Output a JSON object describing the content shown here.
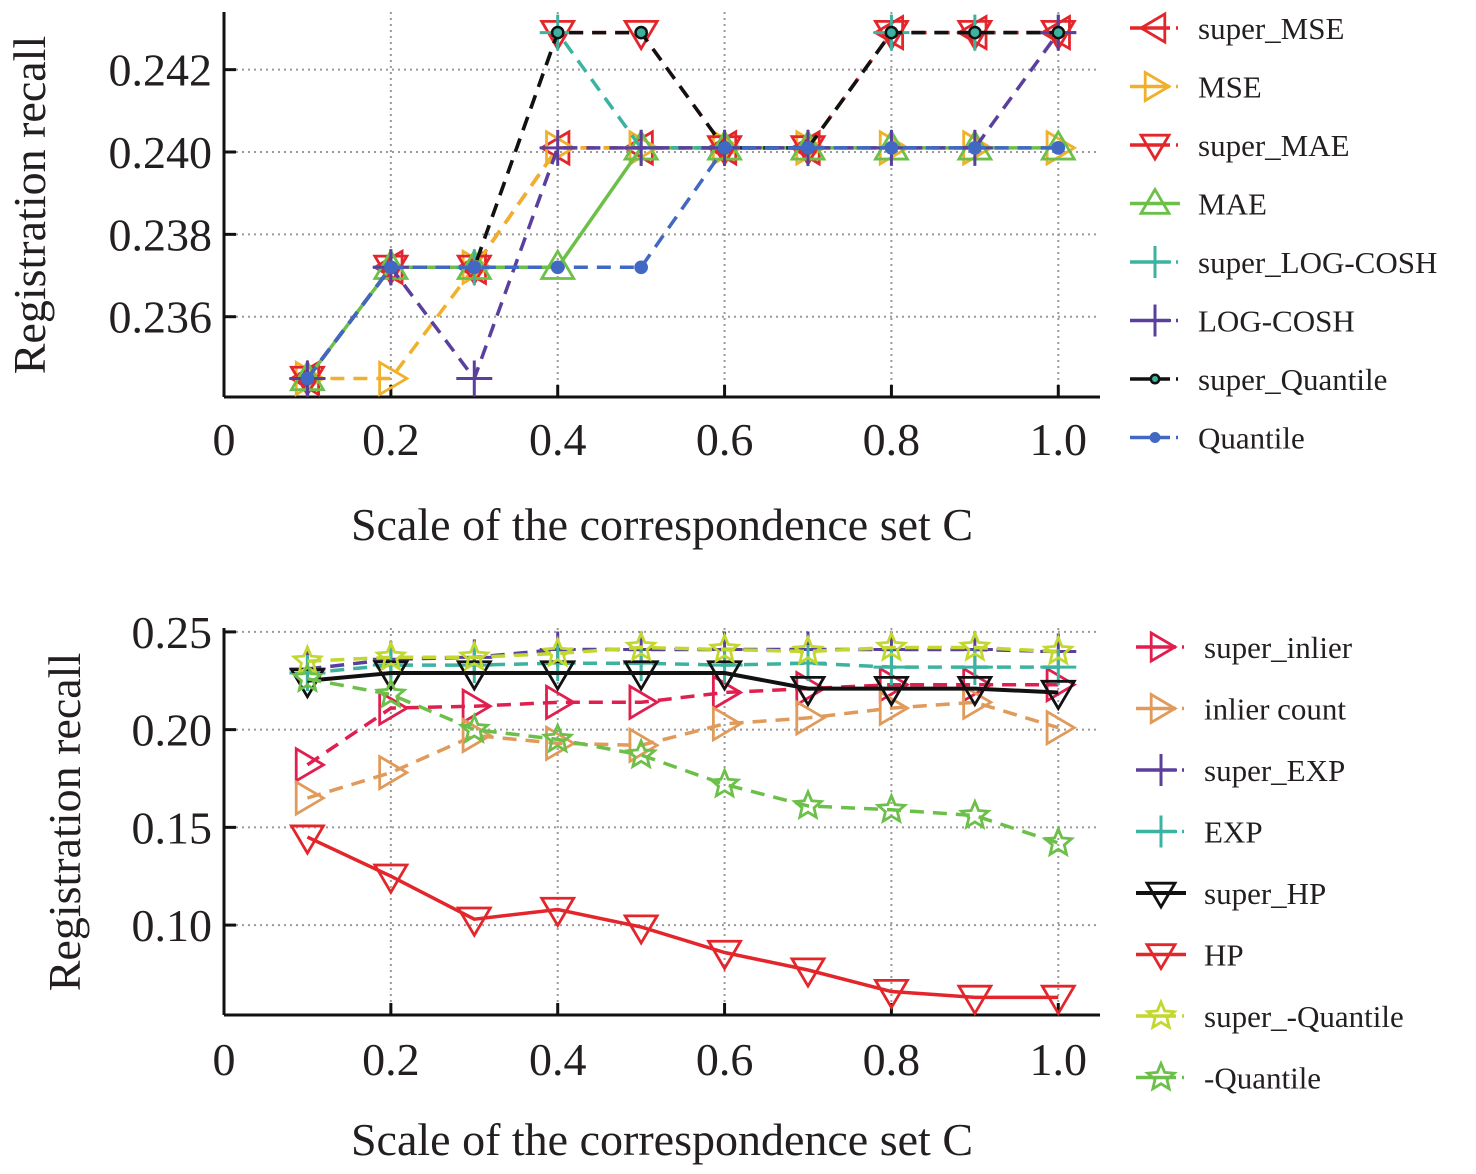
{
  "chart_data": [
    {
      "type": "line",
      "panel": "top",
      "title": "",
      "xlabel": "Scale of the correspondence set C",
      "ylabel": "Registration recall",
      "x": [
        0.1,
        0.2,
        0.3,
        0.4,
        0.5,
        0.6,
        0.7,
        0.8,
        0.9,
        1.0
      ],
      "xlim": [
        0,
        1.05
      ],
      "ylim": [
        0.23405,
        0.2434
      ],
      "xticks": [
        0,
        0.2,
        0.4,
        0.6,
        0.8,
        1.0
      ],
      "xtick_labels": [
        "0",
        "0.2",
        "0.4",
        "0.6",
        "0.8",
        "1.0"
      ],
      "yticks": [
        0.236,
        0.238,
        0.24,
        0.242
      ],
      "ytick_labels": [
        "0.236",
        "0.238",
        "0.240",
        "0.242"
      ],
      "grid": true,
      "legend_position": "right",
      "series": [
        {
          "name": "super_MSE",
          "color": "#e3262b",
          "marker": "triangle-left",
          "dash": "dashed",
          "values": [
            0.2345,
            0.2372,
            0.2372,
            0.2401,
            0.2401,
            0.2401,
            0.2401,
            0.2429,
            0.2429,
            0.2429
          ]
        },
        {
          "name": "MSE",
          "color": "#f0b02a",
          "marker": "triangle-right",
          "dash": "dashed",
          "values": [
            0.2345,
            0.2345,
            0.2372,
            0.2401,
            0.2401,
            0.2401,
            0.2401,
            0.2401,
            0.2401,
            0.2401
          ]
        },
        {
          "name": "super_MAE",
          "color": "#e3262b",
          "marker": "triangle-down",
          "dash": "dashed",
          "values": [
            0.2345,
            0.2372,
            0.2372,
            0.2429,
            0.2429,
            0.2401,
            0.2401,
            0.2429,
            0.2429,
            0.2429
          ]
        },
        {
          "name": "MAE",
          "color": "#6cc04a",
          "marker": "triangle-up",
          "dash": "solid",
          "values": [
            0.2345,
            0.2372,
            0.2372,
            0.2372,
            0.2401,
            0.2401,
            0.2401,
            0.2401,
            0.2401,
            0.2401
          ]
        },
        {
          "name": "super_LOG-COSH",
          "color": "#3bb3a0",
          "marker": "plus",
          "dash": "dashed",
          "values": [
            0.2345,
            0.2372,
            0.2372,
            0.2429,
            0.2401,
            0.2401,
            0.2401,
            0.2429,
            0.2429,
            0.2429
          ]
        },
        {
          "name": "LOG-COSH",
          "color": "#5a3f9c",
          "marker": "plus",
          "dash": "dashed",
          "values": [
            0.2345,
            0.2372,
            0.2345,
            0.2401,
            0.2401,
            0.2401,
            0.2401,
            0.2401,
            0.2401,
            0.2429
          ]
        },
        {
          "name": "super_Quantile",
          "color": "#111111",
          "marker": "circle",
          "dash": "dashed",
          "values": [
            0.2345,
            0.2372,
            0.2372,
            0.2429,
            0.2429,
            0.2401,
            0.2401,
            0.2429,
            0.2429,
            0.2429
          ]
        },
        {
          "name": "Quantile",
          "color": "#4169c4",
          "marker": "circle",
          "dash": "dashed",
          "values": [
            0.2345,
            0.2372,
            0.2372,
            0.2372,
            0.2372,
            0.2401,
            0.2401,
            0.2401,
            0.2401,
            0.2401
          ]
        }
      ]
    },
    {
      "type": "line",
      "panel": "bottom",
      "title": "",
      "xlabel": "Scale of the correspondence set C",
      "ylabel": "Registration recall",
      "x": [
        0.1,
        0.2,
        0.3,
        0.4,
        0.5,
        0.6,
        0.7,
        0.8,
        0.9,
        1.0
      ],
      "xlim": [
        0,
        1.05
      ],
      "ylim": [
        0.054,
        0.252
      ],
      "xticks": [
        0,
        0.2,
        0.4,
        0.6,
        0.8,
        1.0
      ],
      "xtick_labels": [
        "0",
        "0.2",
        "0.4",
        "0.6",
        "0.8",
        "1.0"
      ],
      "yticks": [
        0.1,
        0.15,
        0.2,
        0.25
      ],
      "ytick_labels": [
        "0.10",
        "0.15",
        "0.20",
        "0.25"
      ],
      "grid": true,
      "legend_position": "right",
      "series": [
        {
          "name": "super_inlier",
          "color": "#e01f4f",
          "marker": "triangle-right",
          "dash": "dashed",
          "values": [
            0.182,
            0.211,
            0.212,
            0.214,
            0.214,
            0.219,
            0.221,
            0.223,
            0.223,
            0.223
          ]
        },
        {
          "name": "inlier count",
          "color": "#e09a5a",
          "marker": "triangle-right",
          "dash": "dashed",
          "values": [
            0.165,
            0.178,
            0.197,
            0.193,
            0.192,
            0.203,
            0.206,
            0.211,
            0.214,
            0.201
          ]
        },
        {
          "name": "super_EXP",
          "color": "#5a3f9c",
          "marker": "plus",
          "dash": "dashed",
          "values": [
            0.231,
            0.236,
            0.237,
            0.241,
            0.241,
            0.241,
            0.241,
            0.241,
            0.241,
            0.24
          ]
        },
        {
          "name": "EXP",
          "color": "#3bb3a0",
          "marker": "plus",
          "dash": "dashed",
          "values": [
            0.229,
            0.233,
            0.233,
            0.234,
            0.234,
            0.233,
            0.234,
            0.232,
            0.232,
            0.232
          ]
        },
        {
          "name": "super_HP",
          "color": "#111111",
          "marker": "triangle-down",
          "dash": "solid",
          "values": [
            0.225,
            0.229,
            0.229,
            0.229,
            0.229,
            0.229,
            0.221,
            0.221,
            0.221,
            0.219
          ]
        },
        {
          "name": "HP",
          "color": "#e3262b",
          "marker": "triangle-down",
          "dash": "solid",
          "values": [
            0.145,
            0.125,
            0.103,
            0.108,
            0.099,
            0.086,
            0.077,
            0.066,
            0.063,
            0.063
          ]
        },
        {
          "name": "super_-Quantile",
          "color": "#c2d82f",
          "marker": "star",
          "dash": "dashed",
          "values": [
            0.235,
            0.237,
            0.237,
            0.239,
            0.242,
            0.241,
            0.24,
            0.242,
            0.242,
            0.24
          ]
        },
        {
          "name": "-Quantile",
          "color": "#6cc04a",
          "marker": "star",
          "dash": "dashed",
          "values": [
            0.226,
            0.218,
            0.2,
            0.195,
            0.187,
            0.172,
            0.161,
            0.159,
            0.156,
            0.142
          ]
        }
      ]
    }
  ]
}
